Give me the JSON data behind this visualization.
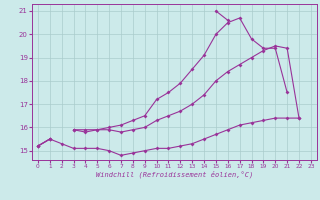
{
  "xlabel": "Windchill (Refroidissement éolien,°C)",
  "bg_color": "#cceaea",
  "grid_color": "#aacccc",
  "line_color": "#993399",
  "x_hours": [
    0,
    1,
    2,
    3,
    4,
    5,
    6,
    7,
    8,
    9,
    10,
    11,
    12,
    13,
    14,
    15,
    16,
    17,
    18,
    19,
    20,
    21,
    22,
    23
  ],
  "line_bottom": [
    15.2,
    15.5,
    15.3,
    15.1,
    15.1,
    15.1,
    15.0,
    14.8,
    14.9,
    15.0,
    15.1,
    15.1,
    15.2,
    15.3,
    15.5,
    15.7,
    15.9,
    16.1,
    16.2,
    16.3,
    16.4,
    16.4,
    16.4,
    null
  ],
  "line_mid": [
    15.2,
    15.5,
    null,
    15.9,
    15.8,
    15.9,
    15.9,
    15.8,
    15.9,
    16.0,
    16.3,
    16.5,
    16.7,
    17.0,
    17.4,
    18.0,
    18.4,
    18.7,
    19.0,
    19.3,
    19.5,
    19.4,
    16.4,
    null
  ],
  "line_upper1": [
    15.2,
    15.5,
    null,
    15.9,
    15.9,
    15.9,
    16.0,
    16.1,
    16.3,
    16.5,
    17.2,
    17.5,
    17.9,
    18.5,
    19.1,
    20.0,
    20.5,
    20.7,
    19.8,
    19.4,
    19.4,
    17.5,
    null,
    null
  ],
  "line_upper2": [
    null,
    null,
    null,
    null,
    null,
    null,
    null,
    null,
    null,
    null,
    null,
    null,
    null,
    null,
    null,
    21.0,
    20.6,
    null,
    null,
    null,
    null,
    null,
    null,
    null
  ],
  "ylim": [
    14.6,
    21.3
  ],
  "yticks": [
    15,
    16,
    17,
    18,
    19,
    20,
    21
  ],
  "xticks": [
    0,
    1,
    2,
    3,
    4,
    5,
    6,
    7,
    8,
    9,
    10,
    11,
    12,
    13,
    14,
    15,
    16,
    17,
    18,
    19,
    20,
    21,
    22,
    23
  ]
}
